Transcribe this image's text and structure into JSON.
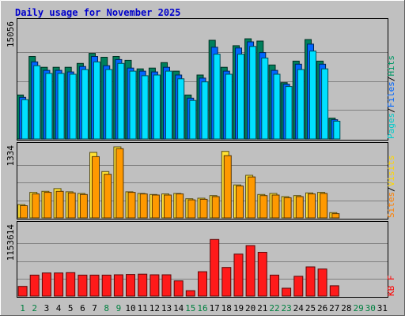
{
  "chart_data": {
    "type": "bar",
    "title": "Daily usage for November 2025",
    "categories": [
      "1",
      "2",
      "3",
      "4",
      "5",
      "6",
      "7",
      "8",
      "9",
      "10",
      "11",
      "12",
      "13",
      "14",
      "15",
      "16",
      "17",
      "18",
      "19",
      "20",
      "21",
      "22",
      "23",
      "24",
      "25",
      "26",
      "27",
      "28",
      "29",
      "30",
      "31"
    ],
    "weekend_days": [
      1,
      2,
      8,
      9,
      15,
      16,
      22,
      23,
      29,
      30
    ],
    "grid": true,
    "panels": [
      {
        "name": "hits-files-pages",
        "max_label": "15056",
        "ymax": 15056,
        "right_label": [
          "Pages",
          "/",
          "Files",
          "/",
          "Hits"
        ],
        "right_label_colors": [
          "#00CCCC",
          "#000000",
          "#0066FF",
          "#000000",
          "#009966"
        ],
        "series": [
          {
            "name": "Hits",
            "color": "#00805c",
            "values": [
              5700,
              10700,
              9300,
              9300,
              9300,
              9800,
              11100,
              10600,
              10700,
              10200,
              9100,
              9200,
              9900,
              8800,
              5700,
              8300,
              12800,
              9300,
              12100,
              13000,
              12700,
              9600,
              7300,
              10100,
              12900,
              10100,
              2700,
              0,
              0,
              0,
              0
            ]
          },
          {
            "name": "Files",
            "color": "#0066FF",
            "values": [
              5400,
              10000,
              8900,
              8900,
              8700,
              9400,
              10700,
              9500,
              10300,
              9200,
              8800,
              8700,
              9300,
              8300,
              5300,
              7900,
              11900,
              8800,
              11800,
              12600,
              11200,
              8900,
              7100,
              9700,
              12300,
              9700,
              2500,
              0,
              0,
              0,
              0
            ]
          },
          {
            "name": "Pages",
            "color": "#00E0FF",
            "values": [
              5100,
              9500,
              8500,
              8500,
              8400,
              9000,
              10000,
              9000,
              9800,
              8800,
              8200,
              8300,
              8800,
              7800,
              5000,
              7400,
              11000,
              8400,
              11000,
              12000,
              10500,
              8400,
              6800,
              9000,
              11400,
              9100,
              2300,
              0,
              0,
              0,
              0
            ]
          }
        ]
      },
      {
        "name": "visits-sites",
        "max_label": "1334",
        "ymax": 1334,
        "right_label": [
          "Sites",
          "/",
          "Visits"
        ],
        "right_label_colors": [
          "#FF8000",
          "#000000",
          "#FFD700"
        ],
        "series": [
          {
            "name": "Visits",
            "color": "#FFE033",
            "values": [
              250,
              480,
              500,
              550,
              490,
              460,
              1230,
              870,
              1334,
              490,
              460,
              440,
              450,
              460,
              360,
              370,
              420,
              1250,
              620,
              800,
              440,
              460,
              400,
              420,
              470,
              480,
              100,
              0,
              0,
              0,
              0
            ]
          },
          {
            "name": "Sites",
            "color": "#FF9900",
            "values": [
              230,
              450,
              480,
              500,
              470,
              440,
              1150,
              820,
              1300,
              480,
              450,
              430,
              430,
              450,
              340,
              350,
              400,
              1170,
              600,
              770,
              420,
              430,
              380,
              400,
              450,
              460,
              80,
              0,
              0,
              0,
              0
            ]
          }
        ]
      },
      {
        "name": "kbytes",
        "max_label": "1153614",
        "ymax": 1153614,
        "right_label": [
          "KB",
          " ",
          "F"
        ],
        "right_label_colors": [
          "#FF0000",
          "#000000",
          "#FF0000"
        ],
        "series": [
          {
            "name": "KB F",
            "color": "#FF1A1A",
            "values": [
              160000,
              345000,
              380000,
              380000,
              385000,
              345000,
              345000,
              345000,
              350000,
              355000,
              360000,
              350000,
              350000,
              250000,
              90000,
              400000,
              930000,
              470000,
              690000,
              830000,
              720000,
              345000,
              130000,
              325000,
              480000,
              445000,
              170000,
              0,
              0,
              0,
              0
            ]
          }
        ]
      }
    ]
  }
}
